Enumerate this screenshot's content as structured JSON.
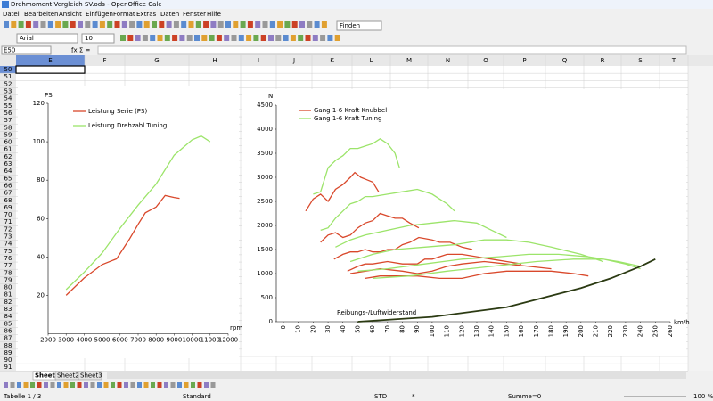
{
  "window": {
    "title": "Drehmoment Vergleich SV.ods - OpenOffice Calc"
  },
  "menu": [
    "Datei",
    "Bearbeiten",
    "Ansicht",
    "Einfügen",
    "Format",
    "Extras",
    "Daten",
    "Fenster",
    "Hilfe"
  ],
  "toolbar": {
    "font": "Arial",
    "size": "10",
    "search": "Finden"
  },
  "formula_bar": {
    "cell": "E50"
  },
  "columns": [
    "E",
    "F",
    "G",
    "H",
    "I",
    "J",
    "K",
    "L",
    "M",
    "N",
    "O",
    "P",
    "Q",
    "R",
    "S",
    "T"
  ],
  "rows": [
    50,
    51,
    52,
    53,
    54,
    55,
    56,
    57,
    58,
    59,
    60,
    61,
    62,
    63,
    64,
    65,
    66,
    67,
    68,
    69,
    70,
    71,
    72,
    73,
    74,
    75,
    76,
    77,
    78,
    79,
    80,
    81,
    82,
    83,
    84,
    85,
    86,
    87,
    88,
    89,
    90,
    91
  ],
  "chart_data": [
    {
      "type": "line",
      "y_label": "PS",
      "x_label": "rpm",
      "legend": "top-left",
      "xlim": [
        2000,
        12000
      ],
      "xticks": [
        2000,
        3000,
        4000,
        5000,
        6000,
        7000,
        8000,
        9000,
        10000,
        11000,
        12000
      ],
      "ylim": [
        0,
        120
      ],
      "yticks": [
        20,
        40,
        60,
        80,
        100,
        120
      ],
      "series": [
        {
          "name": "Leistung Serie (PS)",
          "color": "#d9482b",
          "x": [
            3000,
            4000,
            5000,
            5800,
            6500,
            7000,
            7400,
            8000,
            8500,
            9000,
            9300
          ],
          "values": [
            20,
            29,
            36,
            39,
            49,
            57,
            63,
            66,
            72,
            71,
            70.5
          ]
        },
        {
          "name": "Leistung Drehzahl Tuning",
          "color": "#9ce46a",
          "x": [
            3000,
            4000,
            5000,
            6000,
            7000,
            8000,
            9000,
            10000,
            10500,
            11000
          ],
          "values": [
            23,
            32,
            42,
            55,
            67,
            78,
            93,
            101,
            103,
            100
          ]
        }
      ]
    },
    {
      "type": "line",
      "y_label": "N",
      "x_label": "km/h",
      "annotation": "Reibungs-/Luftwiderstand",
      "legend": "top-left",
      "xlim": [
        0,
        260
      ],
      "xticks": [
        0,
        10,
        20,
        30,
        40,
        50,
        60,
        70,
        80,
        90,
        100,
        110,
        120,
        130,
        140,
        150,
        160,
        170,
        180,
        190,
        200,
        210,
        220,
        230,
        240,
        250,
        260
      ],
      "ylim": [
        0,
        4500
      ],
      "yticks": [
        0,
        500,
        1000,
        1500,
        2000,
        2500,
        3000,
        3500,
        4000,
        4500
      ],
      "series": [
        {
          "name": "Gang 1-6 Kraft Knubbel",
          "color": "#d9482b",
          "x": [
            15,
            20,
            25,
            30,
            35,
            40,
            45,
            48,
            52,
            56,
            60,
            64,
            null,
            25,
            30,
            35,
            40,
            45,
            50,
            55,
            60,
            65,
            70,
            75,
            80,
            85,
            91,
            null,
            34,
            40,
            45,
            50,
            55,
            60,
            65,
            70,
            75,
            80,
            85,
            91,
            100,
            105,
            112,
            120,
            127,
            null,
            43,
            50,
            55,
            60,
            70,
            80,
            90,
            95,
            100,
            110,
            120,
            130,
            140,
            150,
            160,
            null,
            45,
            55,
            65,
            80,
            90,
            100,
            110,
            120,
            135,
            150,
            165,
            180,
            null,
            55,
            65,
            75,
            90,
            105,
            120,
            135,
            150,
            165,
            180,
            195,
            205
          ],
          "values": [
            2300,
            2550,
            2650,
            2500,
            2750,
            2850,
            3000,
            3100,
            3000,
            2950,
            2900,
            2700,
            null,
            1650,
            1800,
            1850,
            1750,
            1800,
            1950,
            2050,
            2100,
            2250,
            2200,
            2150,
            2150,
            2050,
            1950,
            null,
            1300,
            1400,
            1450,
            1450,
            1500,
            1450,
            1450,
            1500,
            1500,
            1600,
            1650,
            1750,
            1700,
            1650,
            1650,
            1550,
            1500,
            null,
            1050,
            1150,
            1200,
            1200,
            1250,
            1200,
            1200,
            1300,
            1300,
            1400,
            1400,
            1350,
            1300,
            1250,
            1200,
            null,
            1000,
            1050,
            1100,
            1050,
            1000,
            1050,
            1150,
            1200,
            1250,
            1200,
            1150,
            1100,
            null,
            900,
            950,
            950,
            950,
            900,
            900,
            1000,
            1050,
            1050,
            1050,
            1000,
            950
          ]
        },
        {
          "name": "Gang 1-6 Kraft Tuning",
          "color": "#9ce46a",
          "x": [
            20,
            25,
            30,
            35,
            40,
            45,
            50,
            55,
            60,
            65,
            70,
            75,
            78,
            null,
            25,
            30,
            35,
            40,
            45,
            50,
            55,
            60,
            70,
            80,
            90,
            100,
            110,
            115,
            null,
            35,
            45,
            55,
            70,
            85,
            100,
            115,
            130,
            140,
            150,
            null,
            45,
            60,
            75,
            95,
            115,
            135,
            150,
            165,
            180,
            200,
            215,
            null,
            50,
            70,
            95,
            120,
            145,
            165,
            185,
            205,
            225,
            240,
            null,
            60,
            85,
            110,
            140,
            170,
            195,
            215,
            230,
            240
          ],
          "values": [
            2650,
            2700,
            3200,
            3350,
            3450,
            3600,
            3600,
            3650,
            3700,
            3800,
            3700,
            3500,
            3200,
            null,
            1900,
            1950,
            2150,
            2300,
            2450,
            2500,
            2600,
            2600,
            2650,
            2700,
            2750,
            2650,
            2450,
            2300,
            null,
            1550,
            1700,
            1800,
            1900,
            2000,
            2050,
            2100,
            2050,
            1900,
            1750,
            null,
            1250,
            1400,
            1500,
            1550,
            1600,
            1700,
            1700,
            1650,
            1550,
            1400,
            1250,
            null,
            1050,
            1100,
            1200,
            1300,
            1350,
            1400,
            1400,
            1350,
            1250,
            1150,
            null,
            900,
            950,
            1050,
            1150,
            1250,
            1300,
            1300,
            1200,
            1100
          ]
        },
        {
          "color": "#2b3a12",
          "x": [
            50,
            100,
            150,
            175,
            200,
            220,
            240,
            250
          ],
          "values": [
            0,
            100,
            300,
            500,
            700,
            900,
            1150,
            1300
          ]
        }
      ]
    }
  ],
  "sheet_tabs": [
    "Sheet1",
    "Sheet2",
    "Sheet3"
  ],
  "status_bar": [
    "Tabelle 1 / 3",
    "Standard",
    "STD",
    "*",
    "Summe=0",
    "100 %"
  ]
}
